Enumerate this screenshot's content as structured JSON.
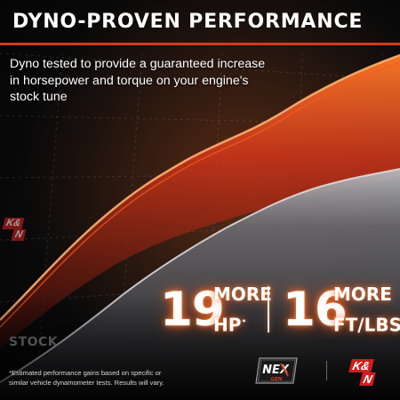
{
  "headline": "DYNO-PROVEN PERFORMANCE",
  "subtext": "Dyno tested to provide a guaranteed increase in horsepower and torque on your engine's stock tune",
  "chart": {
    "stock_label": "STOCK"
  },
  "stats": {
    "hp_value": "19",
    "hp_more": "MORE",
    "hp_unit": "HP",
    "hp_footnote": "*",
    "torque_value": "16",
    "torque_more": "MORE",
    "torque_unit": "FT/LBS",
    "torque_footnote": "*"
  },
  "disclaimer": "*Estimated performance gains based on specific or similar vehicle dynamometer tests. Results will vary.",
  "brand": {
    "kn_logo_top": "K&",
    "kn_logo_bottom": "N",
    "nexgen_logo_main": "NEX",
    "nexgen_logo_sub": "GEN"
  },
  "colors": {
    "accent_red": "#d23b1c",
    "performance_orange": "#ff6a20",
    "stock_gray": "#8a8a8d",
    "brand_red": "#d01e1e"
  }
}
